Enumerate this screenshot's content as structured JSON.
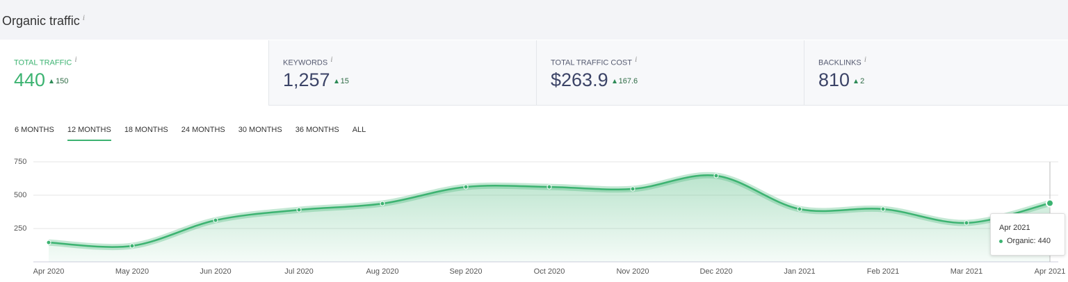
{
  "header": {
    "title": "Organic traffic"
  },
  "metrics": [
    {
      "label": "TOTAL TRAFFIC",
      "value": "440",
      "change": "150"
    },
    {
      "label": "KEYWORDS",
      "value": "1,257",
      "change": "15"
    },
    {
      "label": "TOTAL TRAFFIC COST",
      "value": "$263.9",
      "change": "167.6"
    },
    {
      "label": "BACKLINKS",
      "value": "810",
      "change": "2"
    }
  ],
  "tabs": [
    "6 MONTHS",
    "12 MONTHS",
    "18 MONTHS",
    "24 MONTHS",
    "30 MONTHS",
    "36 MONTHS",
    "ALL"
  ],
  "chart_data": {
    "type": "area",
    "categories": [
      "Apr 2020",
      "May 2020",
      "Jun 2020",
      "Jul 2020",
      "Aug 2020",
      "Sep 2020",
      "Oct 2020",
      "Nov 2020",
      "Dec 2020",
      "Jan 2021",
      "Feb 2021",
      "Mar 2021",
      "Apr 2021"
    ],
    "values": [
      145,
      120,
      312,
      390,
      437,
      562,
      562,
      547,
      646,
      396,
      396,
      292,
      440
    ],
    "color": "#3cb371",
    "ylim": [
      0,
      750
    ],
    "yticks": [
      250,
      500,
      750
    ],
    "grid": true,
    "tooltip": {
      "label": "Organic:"
    }
  }
}
